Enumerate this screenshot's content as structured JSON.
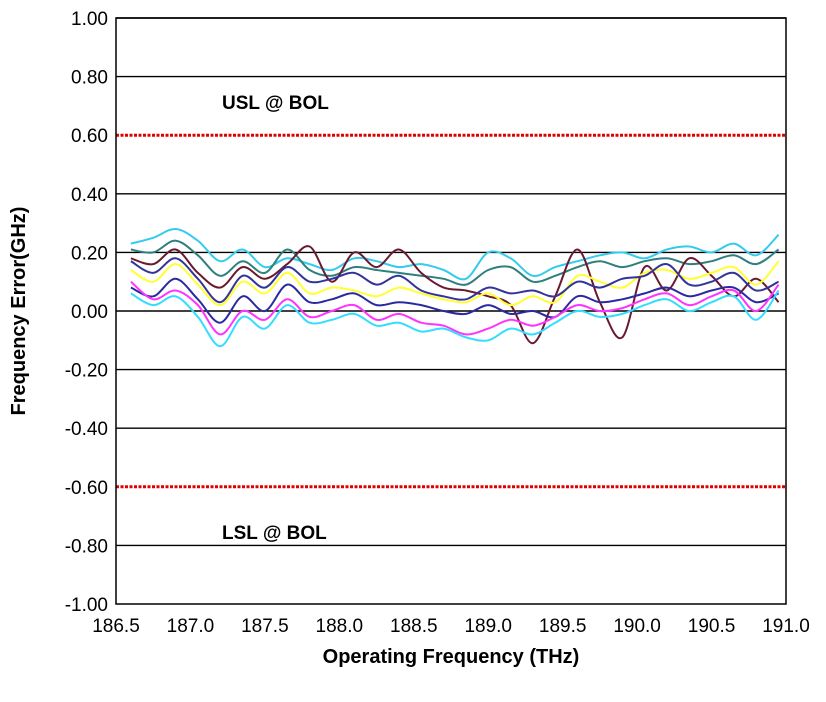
{
  "chart_data": {
    "type": "line",
    "title": "",
    "xlabel": "Operating Frequency (THz)",
    "ylabel": "Frequency Error(GHz)",
    "xlim": [
      186.5,
      191.0
    ],
    "ylim": [
      -1.0,
      1.0
    ],
    "x_ticks": [
      "186.5",
      "187.0",
      "187.5",
      "188.0",
      "188.5",
      "189.0",
      "189.5",
      "190.0",
      "190.5",
      "191.0"
    ],
    "y_ticks": [
      "1.00",
      "0.80",
      "0.60",
      "0.40",
      "0.20",
      "0.00",
      "-0.20",
      "-0.40",
      "-0.60",
      "-0.80",
      "-1.00"
    ],
    "gridlines": [
      1.0,
      0.8,
      0.4,
      0.2,
      0.0,
      -0.2,
      -0.4,
      -0.8
    ],
    "grid": true,
    "limits": [
      {
        "label": "USL @ BOL",
        "value": 0.6,
        "color": "#e00000"
      },
      {
        "label": "LSL @ BOL",
        "value": -0.6,
        "color": "#e00000"
      }
    ],
    "x": [
      186.6,
      186.75,
      186.9,
      187.05,
      187.2,
      187.35,
      187.5,
      187.65,
      187.8,
      187.95,
      188.1,
      188.25,
      188.4,
      188.55,
      188.7,
      188.85,
      189.0,
      189.15,
      189.3,
      189.45,
      189.6,
      189.75,
      189.9,
      190.05,
      190.2,
      190.35,
      190.5,
      190.65,
      190.8,
      190.95
    ],
    "series": [
      {
        "color": "#33ccee",
        "values": [
          0.23,
          0.25,
          0.28,
          0.24,
          0.17,
          0.21,
          0.15,
          0.18,
          0.16,
          0.14,
          0.18,
          0.17,
          0.15,
          0.16,
          0.14,
          0.11,
          0.2,
          0.18,
          0.12,
          0.15,
          0.17,
          0.19,
          0.2,
          0.18,
          0.21,
          0.22,
          0.2,
          0.23,
          0.19,
          0.26
        ]
      },
      {
        "color": "#2f7f7f",
        "values": [
          0.21,
          0.2,
          0.24,
          0.19,
          0.12,
          0.17,
          0.13,
          0.21,
          0.14,
          0.12,
          0.15,
          0.14,
          0.13,
          0.12,
          0.11,
          0.09,
          0.14,
          0.15,
          0.1,
          0.12,
          0.15,
          0.17,
          0.15,
          0.17,
          0.18,
          0.16,
          0.17,
          0.19,
          0.16,
          0.21
        ]
      },
      {
        "color": "#6a1a30",
        "values": [
          0.18,
          0.16,
          0.21,
          0.13,
          0.08,
          0.15,
          0.11,
          0.16,
          0.22,
          0.1,
          0.2,
          0.15,
          0.21,
          0.13,
          0.08,
          0.07,
          0.05,
          0.02,
          -0.11,
          0.05,
          0.21,
          0.03,
          -0.09,
          0.15,
          0.07,
          0.18,
          0.12,
          0.05,
          0.11,
          0.03
        ]
      },
      {
        "color": "#ffff33",
        "values": [
          0.14,
          0.1,
          0.16,
          0.09,
          0.02,
          0.1,
          0.06,
          0.13,
          0.06,
          0.08,
          0.07,
          0.05,
          0.08,
          0.06,
          0.04,
          0.03,
          0.06,
          0.02,
          0.05,
          0.03,
          0.12,
          0.1,
          0.08,
          0.13,
          0.14,
          0.11,
          0.13,
          0.15,
          0.09,
          0.17
        ]
      },
      {
        "color": "#333399",
        "values": [
          0.17,
          0.13,
          0.18,
          0.11,
          0.03,
          0.12,
          0.08,
          0.15,
          0.1,
          0.11,
          0.13,
          0.09,
          0.12,
          0.07,
          0.05,
          0.04,
          0.08,
          0.06,
          0.07,
          0.05,
          0.1,
          0.08,
          0.11,
          0.12,
          0.16,
          0.09,
          0.1,
          0.13,
          0.07,
          0.1
        ]
      },
      {
        "color": "#2a2aa0",
        "values": [
          0.08,
          0.05,
          0.11,
          0.04,
          -0.04,
          0.05,
          0.0,
          0.09,
          0.03,
          0.04,
          0.06,
          0.02,
          0.03,
          0.02,
          0.0,
          -0.01,
          0.02,
          -0.01,
          0.0,
          -0.02,
          0.05,
          0.03,
          0.04,
          0.06,
          0.08,
          0.05,
          0.07,
          0.08,
          0.03,
          0.06
        ]
      },
      {
        "color": "#ff33ff",
        "values": [
          0.1,
          0.04,
          0.07,
          0.02,
          -0.08,
          0.0,
          -0.03,
          0.04,
          -0.02,
          0.0,
          0.02,
          -0.03,
          -0.01,
          -0.04,
          -0.05,
          -0.08,
          -0.06,
          -0.03,
          -0.05,
          -0.02,
          0.02,
          0.0,
          0.01,
          0.04,
          0.06,
          0.02,
          0.05,
          0.07,
          0.0,
          0.09
        ]
      },
      {
        "color": "#33ddff",
        "values": [
          0.06,
          0.02,
          0.05,
          -0.02,
          -0.12,
          -0.02,
          -0.06,
          0.02,
          -0.04,
          -0.03,
          -0.01,
          -0.05,
          -0.04,
          -0.07,
          -0.06,
          -0.09,
          -0.1,
          -0.06,
          -0.08,
          -0.04,
          0.0,
          -0.02,
          -0.01,
          0.02,
          0.04,
          0.0,
          0.03,
          0.05,
          -0.03,
          0.07
        ]
      }
    ]
  }
}
